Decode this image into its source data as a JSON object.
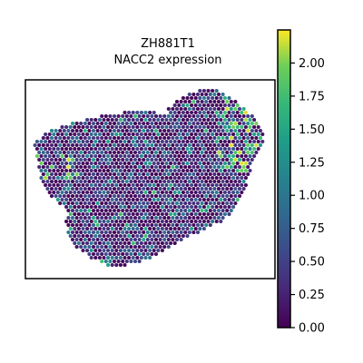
{
  "chart_data": {
    "type": "heatmap",
    "subtype": "spatial-hexbin",
    "title_line1": "ZH881T1",
    "title_line2": "NACC2 expression",
    "xlabel": "",
    "ylabel": "",
    "colormap": "viridis",
    "colorbar": {
      "vmin": 0.0,
      "vmax": 2.25,
      "ticks": [
        0.0,
        0.25,
        0.5,
        0.75,
        1.0,
        1.25,
        1.5,
        1.75,
        2.0
      ],
      "tick_labels": [
        "0.00",
        "0.25",
        "0.50",
        "0.75",
        "1.00",
        "1.25",
        "1.50",
        "1.75",
        "2.00"
      ],
      "placement": "right"
    },
    "value_distribution": {
      "typical_range": [
        0.0,
        0.75
      ],
      "high_spots_range": [
        1.25,
        2.25
      ],
      "high_spots_region": "upper-right and left edge"
    }
  }
}
